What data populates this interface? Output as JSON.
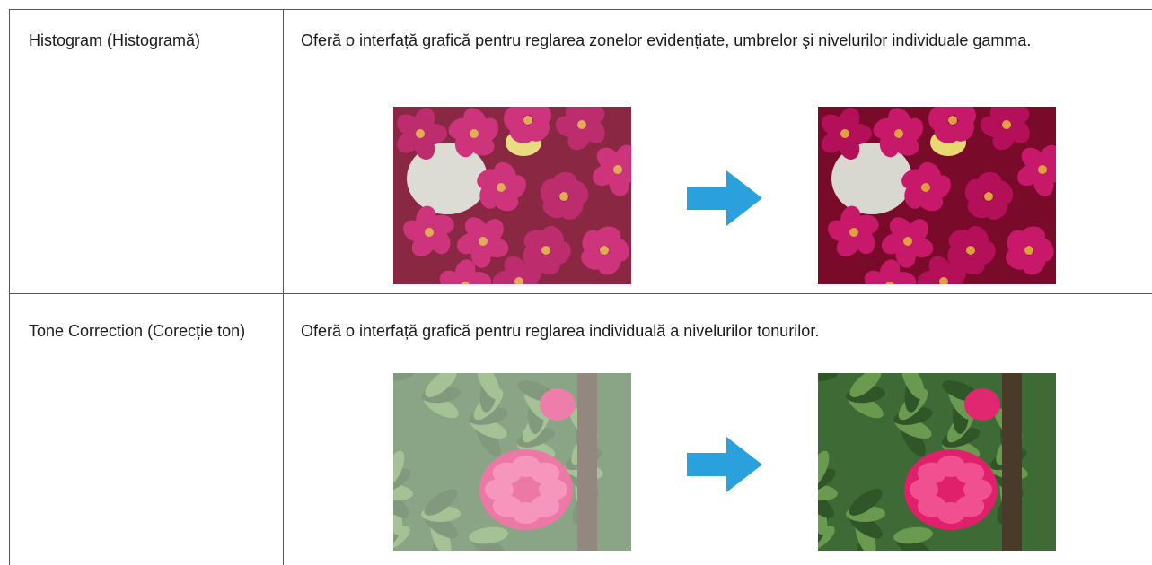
{
  "table": {
    "rows": [
      [
        "Histogram (Histogramă)",
        "Oferă o interfață grafică pentru reglarea zonelor evidențiate, umbrelor şi nivelurilor individuale gamma."
      ],
      [
        "Tone Correction (Corecție ton)",
        "Oferă o interfață grafică pentru reglarea individuală a nivelurilor tonurilor."
      ]
    ]
  }
}
